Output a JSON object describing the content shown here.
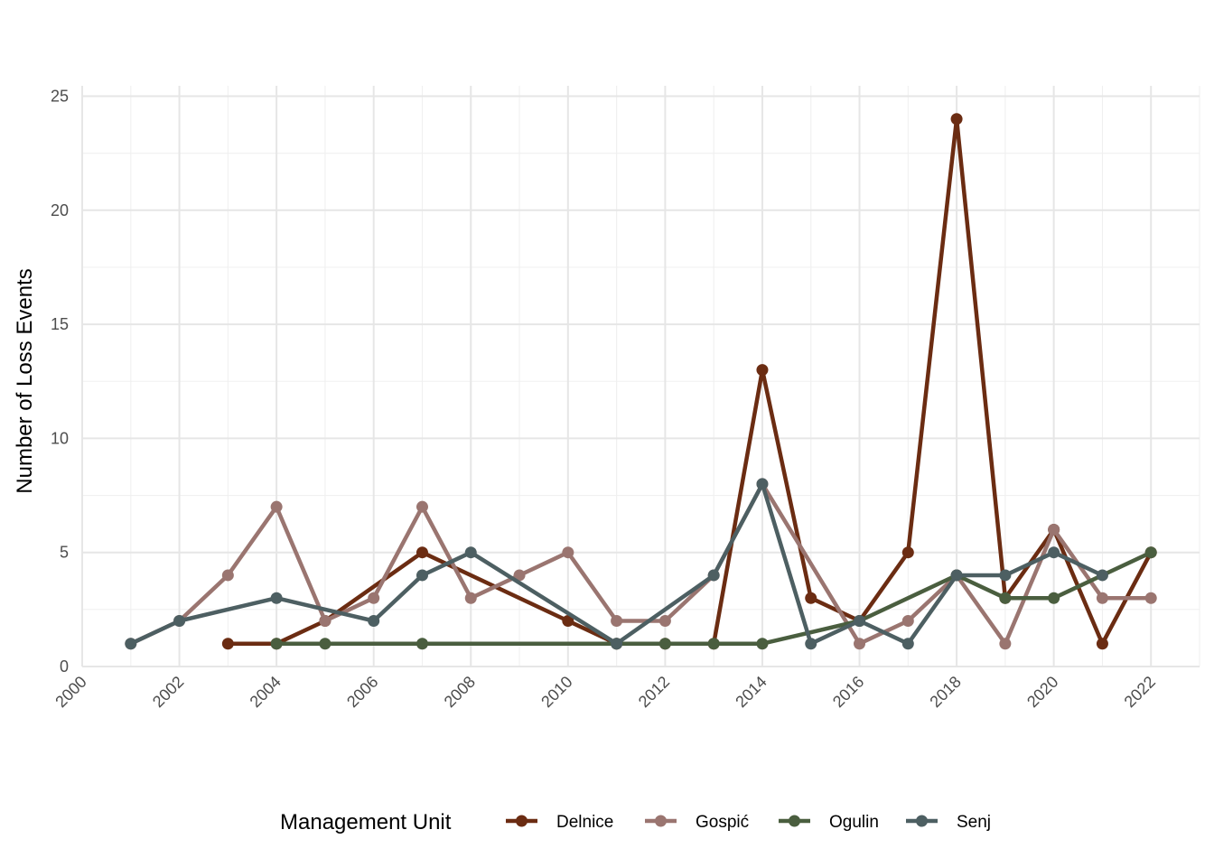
{
  "chart_data": {
    "type": "line",
    "xlabel": "",
    "ylabel": "Number of Loss Events",
    "xlim": [
      2000,
      2023
    ],
    "ylim": [
      0,
      25
    ],
    "x_ticks": [
      "2000",
      "2002",
      "2004",
      "2006",
      "2008",
      "2010",
      "2012",
      "2014",
      "2016",
      "2018",
      "2020",
      "2022"
    ],
    "y_ticks": [
      "0",
      "5",
      "10",
      "15",
      "20",
      "25"
    ],
    "grid": true,
    "legend": {
      "title": "Management Unit",
      "position": "bottom"
    },
    "series": [
      {
        "name": "Delnice",
        "color": "#6B2C12",
        "x": [
          2003,
          2004,
          2005,
          2007,
          2010,
          2011,
          2012,
          2013,
          2014,
          2015,
          2016,
          2017,
          2018,
          2019,
          2020,
          2021,
          2022
        ],
        "y": [
          1,
          1,
          2,
          5,
          2,
          1,
          1,
          1,
          13,
          3,
          2,
          5,
          24,
          3,
          6,
          1,
          5
        ]
      },
      {
        "name": "Gospić",
        "color": "#9A7570",
        "x": [
          2001,
          2002,
          2003,
          2004,
          2005,
          2006,
          2007,
          2008,
          2009,
          2010,
          2011,
          2012,
          2013,
          2014,
          2016,
          2017,
          2018,
          2019,
          2020,
          2021,
          2022
        ],
        "y": [
          1,
          2,
          4,
          7,
          2,
          3,
          7,
          3,
          4,
          5,
          2,
          2,
          4,
          8,
          1,
          2,
          4,
          1,
          6,
          3,
          3
        ]
      },
      {
        "name": "Ogulin",
        "color": "#4A5E3F",
        "x": [
          2004,
          2005,
          2007,
          2011,
          2012,
          2013,
          2014,
          2016,
          2018,
          2019,
          2020,
          2022
        ],
        "y": [
          1,
          1,
          1,
          1,
          1,
          1,
          1,
          2,
          4,
          3,
          3,
          5
        ]
      },
      {
        "name": "Senj",
        "color": "#4D5F62",
        "x": [
          2001,
          2002,
          2004,
          2006,
          2007,
          2008,
          2011,
          2013,
          2014,
          2015,
          2016,
          2017,
          2018,
          2019,
          2020,
          2021
        ],
        "y": [
          1,
          2,
          3,
          2,
          4,
          5,
          1,
          4,
          8,
          1,
          2,
          1,
          4,
          4,
          5,
          4
        ]
      }
    ]
  }
}
